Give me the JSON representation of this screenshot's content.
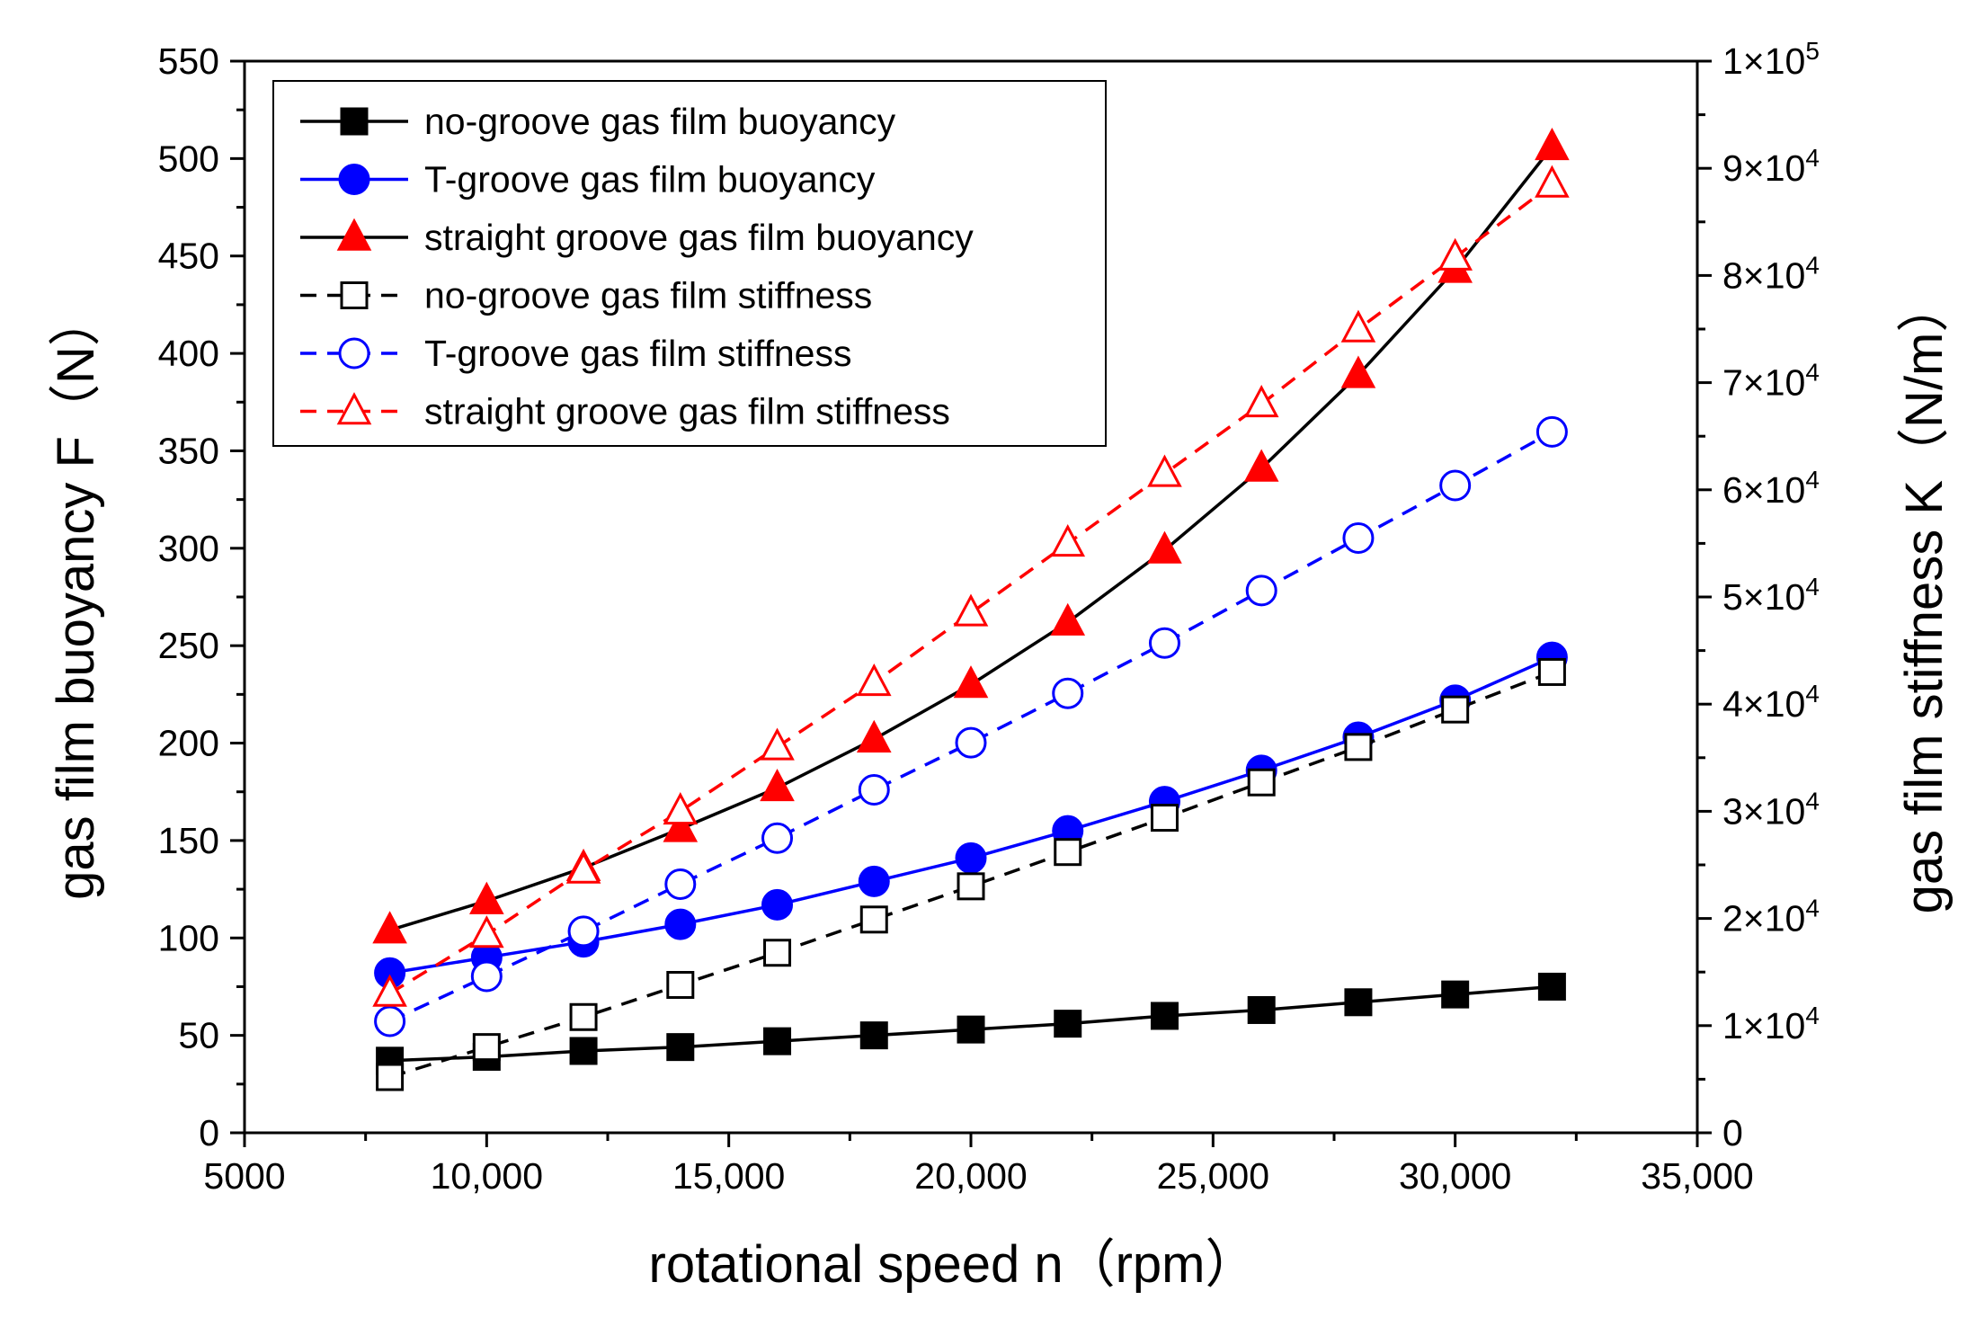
{
  "chart_data": {
    "type": "line",
    "title": "",
    "xlabel": "rotational speed n（rpm）",
    "ylabel_left": "gas film buoyancy F（N）",
    "ylabel_right": "gas film stiffness K（N/m）",
    "xlim": [
      5000,
      35000
    ],
    "ylim_left": [
      0,
      550
    ],
    "ylim_right": [
      0,
      100000
    ],
    "x_ticks": [
      {
        "value": 5000,
        "label": "5000"
      },
      {
        "value": 10000,
        "label": "10,000"
      },
      {
        "value": 15000,
        "label": "15,000"
      },
      {
        "value": 20000,
        "label": "20,000"
      },
      {
        "value": 25000,
        "label": "25,000"
      },
      {
        "value": 30000,
        "label": "30,000"
      },
      {
        "value": 35000,
        "label": "35,000"
      }
    ],
    "y_left_ticks": [
      {
        "value": 0,
        "label": "0"
      },
      {
        "value": 50,
        "label": "50"
      },
      {
        "value": 100,
        "label": "100"
      },
      {
        "value": 150,
        "label": "150"
      },
      {
        "value": 200,
        "label": "200"
      },
      {
        "value": 250,
        "label": "250"
      },
      {
        "value": 300,
        "label": "300"
      },
      {
        "value": 350,
        "label": "350"
      },
      {
        "value": 400,
        "label": "400"
      },
      {
        "value": 450,
        "label": "450"
      },
      {
        "value": 500,
        "label": "500"
      },
      {
        "value": 550,
        "label": "550"
      }
    ],
    "y_right_ticks": [
      {
        "value": 0,
        "label": "0"
      },
      {
        "value": 10000,
        "label": "1×10",
        "exp": "4"
      },
      {
        "value": 20000,
        "label": "2×10",
        "exp": "4"
      },
      {
        "value": 30000,
        "label": "3×10",
        "exp": "4"
      },
      {
        "value": 40000,
        "label": "4×10",
        "exp": "4"
      },
      {
        "value": 50000,
        "label": "5×10",
        "exp": "4"
      },
      {
        "value": 60000,
        "label": "6×10",
        "exp": "4"
      },
      {
        "value": 70000,
        "label": "7×10",
        "exp": "4"
      },
      {
        "value": 80000,
        "label": "8×10",
        "exp": "4"
      },
      {
        "value": 90000,
        "label": "9×10",
        "exp": "4"
      },
      {
        "value": 100000,
        "label": "1×10",
        "exp": "5"
      }
    ],
    "x": [
      8000,
      10000,
      12000,
      14000,
      16000,
      18000,
      20000,
      22000,
      24000,
      26000,
      28000,
      30000,
      32000
    ],
    "series": [
      {
        "name": "no-groove gas film buoyancy",
        "axis": "left",
        "color": "#000000",
        "marker": "square",
        "filled": true,
        "dashed": false,
        "values": [
          37,
          39,
          42,
          44,
          47,
          50,
          53,
          56,
          60,
          63,
          67,
          71,
          75
        ]
      },
      {
        "name": "T-groove gas film buoyancy",
        "axis": "left",
        "color": "#0000ff",
        "marker": "circle",
        "filled": true,
        "dashed": false,
        "values": [
          82,
          90,
          98,
          107,
          117,
          129,
          141,
          155,
          170,
          186,
          203,
          222,
          244
        ]
      },
      {
        "name": "straight groove gas film buoyancy",
        "axis": "left",
        "color": "#ff0000",
        "line_color": "#000000",
        "marker": "triangle",
        "filled": true,
        "dashed": false,
        "values": [
          104,
          119,
          136,
          156,
          177,
          202,
          230,
          262,
          299,
          341,
          389,
          443,
          506
        ]
      },
      {
        "name": "no-groove gas film stiffness",
        "axis": "right",
        "color": "#000000",
        "marker": "square",
        "filled": false,
        "dashed": true,
        "values": [
          5200,
          8000,
          10800,
          13800,
          16800,
          19900,
          23000,
          26200,
          29400,
          32700,
          36000,
          39500,
          43000
        ]
      },
      {
        "name": "T-groove gas film stiffness",
        "axis": "right",
        "color": "#0000ff",
        "marker": "circle",
        "filled": false,
        "dashed": true,
        "values": [
          10400,
          14600,
          18800,
          23200,
          27500,
          32000,
          36400,
          41000,
          45700,
          50600,
          55500,
          60400,
          65400
        ]
      },
      {
        "name": "straight groove gas film stiffness",
        "axis": "right",
        "color": "#ff0000",
        "marker": "triangle",
        "filled": false,
        "dashed": true,
        "values": [
          13000,
          18500,
          24500,
          30000,
          36000,
          42000,
          48500,
          55000,
          61500,
          68000,
          75000,
          81700,
          88500
        ]
      }
    ],
    "legend_position": "top-left"
  }
}
